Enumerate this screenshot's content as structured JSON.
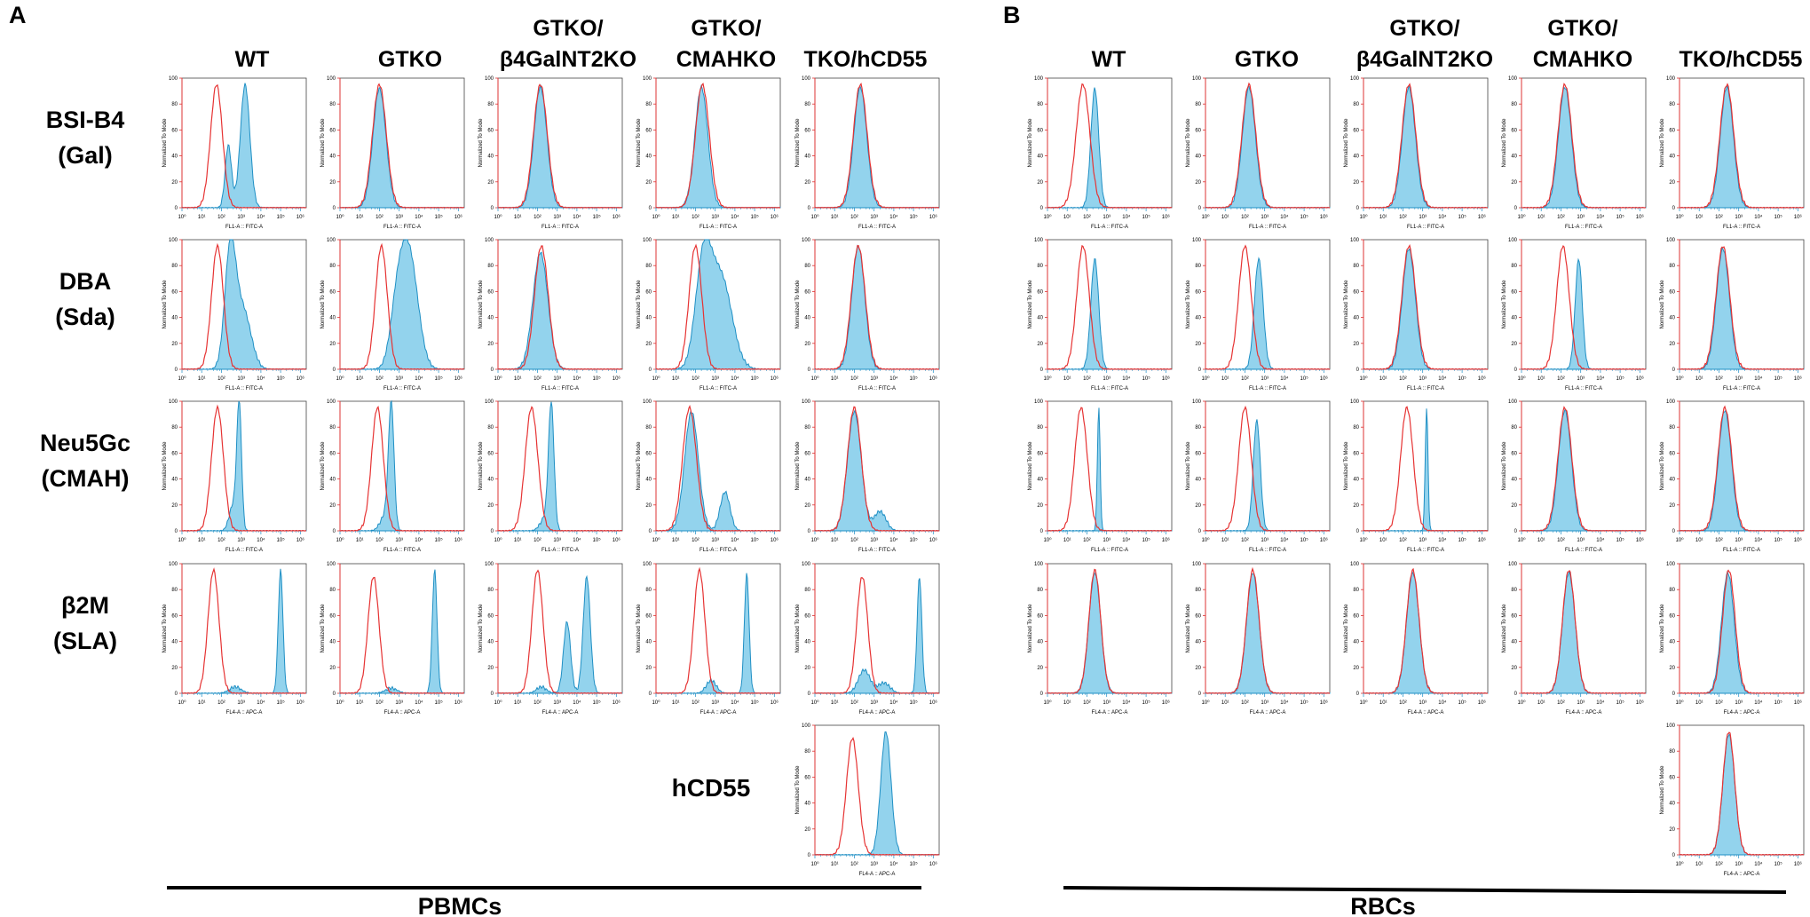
{
  "panels": [
    {
      "letter": "A",
      "group": "PBMCs",
      "columns": [
        "WT",
        "GTKO",
        "GTKO/\nβ4GalNT2KO",
        "GTKO/\nCMAHKO",
        "TKO/hCD55"
      ]
    },
    {
      "letter": "B",
      "group": "RBCs",
      "columns": [
        "WT",
        "GTKO",
        "GTKO/\nβ4GalNT2KO",
        "GTKO/\nCMAHKO",
        "TKO/hCD55"
      ]
    }
  ],
  "rows": [
    {
      "label": [
        "BSI-B4",
        "(Gal)"
      ],
      "xlabel": "FL1-A :: FITC-A"
    },
    {
      "label": [
        "DBA",
        "(Sda)"
      ],
      "xlabel": "FL1-A :: FITC-A"
    },
    {
      "label": [
        "Neu5Gc",
        "(CMAH)"
      ],
      "xlabel": "FL1-A :: FITC-A"
    },
    {
      "label": [
        "β2M",
        "(SLA)"
      ],
      "xlabel": "FL4-A :: APC-A"
    },
    {
      "label": [
        "hCD55"
      ],
      "xlabel": "FL4-A :: APC-A"
    }
  ],
  "axis": {
    "ylabel": "Normalized To Mode",
    "yticks": [
      "0",
      "20",
      "40",
      "60",
      "80",
      "100"
    ],
    "xticks": [
      "10⁰",
      "10¹",
      "10²",
      "10³",
      "10⁴",
      "10⁵",
      "10⁶"
    ]
  },
  "chart_data": {
    "type": "histogram-grid",
    "x_scale": "log10",
    "xlim": [
      0,
      6.3
    ],
    "ylim": [
      0,
      100
    ],
    "legend": "red line = control, blue fill = stained sample",
    "plots": [
      {
        "panel": "A",
        "row": 0,
        "col": 0,
        "ctrl": [
          [
            1.75,
            0.3,
            95
          ]
        ],
        "samp": [
          [
            2.35,
            0.16,
            48
          ],
          [
            3.2,
            0.24,
            95
          ]
        ]
      },
      {
        "panel": "A",
        "row": 0,
        "col": 1,
        "ctrl": [
          [
            2.0,
            0.35,
            95
          ]
        ],
        "samp": [
          [
            2.0,
            0.33,
            92
          ]
        ]
      },
      {
        "panel": "A",
        "row": 0,
        "col": 2,
        "ctrl": [
          [
            2.15,
            0.35,
            95
          ]
        ],
        "samp": [
          [
            2.15,
            0.33,
            93
          ]
        ]
      },
      {
        "panel": "A",
        "row": 0,
        "col": 3,
        "ctrl": [
          [
            2.35,
            0.35,
            95
          ]
        ],
        "samp": [
          [
            2.3,
            0.33,
            93
          ]
        ]
      },
      {
        "panel": "A",
        "row": 0,
        "col": 4,
        "ctrl": [
          [
            2.3,
            0.35,
            95
          ]
        ],
        "samp": [
          [
            2.3,
            0.33,
            93
          ]
        ]
      },
      {
        "panel": "A",
        "row": 1,
        "col": 0,
        "ctrl": [
          [
            1.8,
            0.3,
            95
          ]
        ],
        "samp": [
          [
            2.45,
            0.28,
            90
          ],
          [
            3.1,
            0.4,
            45
          ]
        ]
      },
      {
        "panel": "A",
        "row": 1,
        "col": 1,
        "ctrl": [
          [
            2.1,
            0.3,
            95
          ]
        ],
        "samp": [
          [
            2.9,
            0.35,
            40
          ],
          [
            3.5,
            0.45,
            88
          ]
        ]
      },
      {
        "panel": "A",
        "row": 1,
        "col": 2,
        "ctrl": [
          [
            2.2,
            0.35,
            95
          ]
        ],
        "samp": [
          [
            2.15,
            0.38,
            90
          ]
        ]
      },
      {
        "panel": "A",
        "row": 1,
        "col": 3,
        "ctrl": [
          [
            2.0,
            0.32,
            95
          ]
        ],
        "samp": [
          [
            2.4,
            0.4,
            80
          ],
          [
            3.3,
            0.55,
            70
          ]
        ]
      },
      {
        "panel": "A",
        "row": 1,
        "col": 4,
        "ctrl": [
          [
            2.2,
            0.35,
            95
          ]
        ],
        "samp": [
          [
            2.2,
            0.33,
            95
          ]
        ]
      },
      {
        "panel": "A",
        "row": 2,
        "col": 0,
        "ctrl": [
          [
            1.8,
            0.3,
            95
          ]
        ],
        "samp": [
          [
            2.9,
            0.12,
            95
          ],
          [
            2.6,
            0.2,
            20
          ]
        ]
      },
      {
        "panel": "A",
        "row": 2,
        "col": 1,
        "ctrl": [
          [
            1.9,
            0.3,
            95
          ]
        ],
        "samp": [
          [
            2.6,
            0.14,
            95
          ],
          [
            2.3,
            0.25,
            12
          ]
        ]
      },
      {
        "panel": "A",
        "row": 2,
        "col": 2,
        "ctrl": [
          [
            1.7,
            0.32,
            95
          ]
        ],
        "samp": [
          [
            2.7,
            0.14,
            95
          ],
          [
            2.4,
            0.25,
            10
          ]
        ]
      },
      {
        "panel": "A",
        "row": 2,
        "col": 3,
        "ctrl": [
          [
            1.7,
            0.35,
            95
          ]
        ],
        "samp": [
          [
            1.8,
            0.35,
            92
          ],
          [
            3.5,
            0.25,
            30
          ]
        ]
      },
      {
        "panel": "A",
        "row": 2,
        "col": 4,
        "ctrl": [
          [
            2.0,
            0.35,
            95
          ]
        ],
        "samp": [
          [
            2.0,
            0.35,
            92
          ],
          [
            3.3,
            0.3,
            15
          ]
        ]
      },
      {
        "panel": "A",
        "row": 3,
        "col": 0,
        "ctrl": [
          [
            1.6,
            0.28,
            95
          ]
        ],
        "samp": [
          [
            5.0,
            0.12,
            95
          ],
          [
            2.7,
            0.3,
            5
          ]
        ]
      },
      {
        "panel": "A",
        "row": 3,
        "col": 1,
        "ctrl": [
          [
            1.7,
            0.28,
            90
          ]
        ],
        "samp": [
          [
            4.8,
            0.12,
            95
          ],
          [
            2.6,
            0.3,
            4
          ]
        ]
      },
      {
        "panel": "A",
        "row": 3,
        "col": 2,
        "ctrl": [
          [
            2.0,
            0.28,
            95
          ]
        ],
        "samp": [
          [
            3.5,
            0.18,
            55
          ],
          [
            4.5,
            0.18,
            90
          ],
          [
            2.2,
            0.25,
            5
          ]
        ]
      },
      {
        "panel": "A",
        "row": 3,
        "col": 3,
        "ctrl": [
          [
            2.2,
            0.28,
            95
          ]
        ],
        "samp": [
          [
            4.6,
            0.12,
            92
          ],
          [
            2.8,
            0.25,
            10
          ]
        ]
      },
      {
        "panel": "A",
        "row": 3,
        "col": 4,
        "ctrl": [
          [
            2.4,
            0.28,
            90
          ]
        ],
        "samp": [
          [
            5.3,
            0.12,
            90
          ],
          [
            3.5,
            0.3,
            8
          ],
          [
            2.5,
            0.3,
            18
          ]
        ]
      },
      {
        "panel": "A",
        "row": 4,
        "col": 4,
        "ctrl": [
          [
            1.9,
            0.3,
            90
          ]
        ],
        "samp": [
          [
            3.6,
            0.26,
            95
          ]
        ]
      },
      {
        "panel": "B",
        "row": 0,
        "col": 0,
        "ctrl": [
          [
            1.8,
            0.35,
            95
          ]
        ],
        "samp": [
          [
            2.4,
            0.2,
            92
          ]
        ]
      },
      {
        "panel": "B",
        "row": 0,
        "col": 1,
        "ctrl": [
          [
            2.2,
            0.35,
            95
          ]
        ],
        "samp": [
          [
            2.2,
            0.33,
            93
          ]
        ]
      },
      {
        "panel": "B",
        "row": 0,
        "col": 2,
        "ctrl": [
          [
            2.3,
            0.35,
            95
          ]
        ],
        "samp": [
          [
            2.3,
            0.33,
            93
          ]
        ]
      },
      {
        "panel": "B",
        "row": 0,
        "col": 3,
        "ctrl": [
          [
            2.2,
            0.35,
            95
          ]
        ],
        "samp": [
          [
            2.2,
            0.33,
            93
          ]
        ]
      },
      {
        "panel": "B",
        "row": 0,
        "col": 4,
        "ctrl": [
          [
            2.4,
            0.35,
            95
          ]
        ],
        "samp": [
          [
            2.4,
            0.33,
            93
          ]
        ]
      },
      {
        "panel": "B",
        "row": 1,
        "col": 0,
        "ctrl": [
          [
            1.8,
            0.32,
            95
          ]
        ],
        "samp": [
          [
            2.4,
            0.2,
            85
          ]
        ]
      },
      {
        "panel": "B",
        "row": 1,
        "col": 1,
        "ctrl": [
          [
            2.0,
            0.32,
            95
          ]
        ],
        "samp": [
          [
            2.7,
            0.22,
            85
          ]
        ]
      },
      {
        "panel": "B",
        "row": 1,
        "col": 2,
        "ctrl": [
          [
            2.3,
            0.35,
            95
          ]
        ],
        "samp": [
          [
            2.3,
            0.33,
            93
          ]
        ]
      },
      {
        "panel": "B",
        "row": 1,
        "col": 3,
        "ctrl": [
          [
            2.1,
            0.32,
            95
          ]
        ],
        "samp": [
          [
            2.9,
            0.18,
            85
          ]
        ]
      },
      {
        "panel": "B",
        "row": 1,
        "col": 4,
        "ctrl": [
          [
            2.2,
            0.35,
            95
          ]
        ],
        "samp": [
          [
            2.2,
            0.33,
            93
          ]
        ]
      },
      {
        "panel": "B",
        "row": 2,
        "col": 0,
        "ctrl": [
          [
            1.7,
            0.32,
            95
          ]
        ],
        "samp": [
          [
            2.6,
            0.07,
            95
          ]
        ]
      },
      {
        "panel": "B",
        "row": 2,
        "col": 1,
        "ctrl": [
          [
            2.0,
            0.32,
            95
          ]
        ],
        "samp": [
          [
            2.6,
            0.18,
            85
          ]
        ]
      },
      {
        "panel": "B",
        "row": 2,
        "col": 2,
        "ctrl": [
          [
            2.2,
            0.32,
            95
          ]
        ],
        "samp": [
          [
            3.2,
            0.07,
            95
          ]
        ]
      },
      {
        "panel": "B",
        "row": 2,
        "col": 3,
        "ctrl": [
          [
            2.2,
            0.35,
            95
          ]
        ],
        "samp": [
          [
            2.2,
            0.33,
            93
          ]
        ]
      },
      {
        "panel": "B",
        "row": 2,
        "col": 4,
        "ctrl": [
          [
            2.3,
            0.35,
            95
          ]
        ],
        "samp": [
          [
            2.3,
            0.33,
            93
          ]
        ]
      },
      {
        "panel": "B",
        "row": 3,
        "col": 0,
        "ctrl": [
          [
            2.4,
            0.3,
            95
          ]
        ],
        "samp": [
          [
            2.4,
            0.3,
            93
          ]
        ]
      },
      {
        "panel": "B",
        "row": 3,
        "col": 1,
        "ctrl": [
          [
            2.4,
            0.32,
            95
          ]
        ],
        "samp": [
          [
            2.4,
            0.32,
            93
          ]
        ]
      },
      {
        "panel": "B",
        "row": 3,
        "col": 2,
        "ctrl": [
          [
            2.5,
            0.32,
            95
          ]
        ],
        "samp": [
          [
            2.5,
            0.32,
            93
          ]
        ]
      },
      {
        "panel": "B",
        "row": 3,
        "col": 3,
        "ctrl": [
          [
            2.4,
            0.32,
            95
          ]
        ],
        "samp": [
          [
            2.4,
            0.32,
            93
          ]
        ]
      },
      {
        "panel": "B",
        "row": 3,
        "col": 4,
        "ctrl": [
          [
            2.5,
            0.32,
            95
          ]
        ],
        "samp": [
          [
            2.45,
            0.32,
            93
          ]
        ]
      },
      {
        "panel": "B",
        "row": 4,
        "col": 4,
        "ctrl": [
          [
            2.5,
            0.3,
            95
          ]
        ],
        "samp": [
          [
            2.5,
            0.3,
            93
          ]
        ]
      }
    ]
  }
}
